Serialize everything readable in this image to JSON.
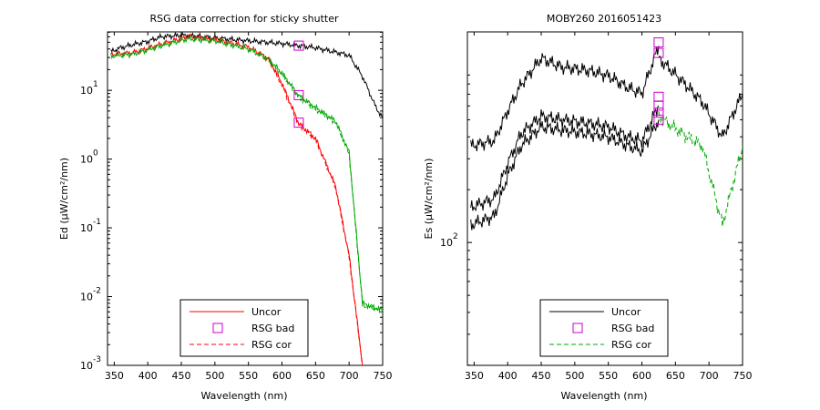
{
  "chart_data": [
    {
      "type": "line",
      "title": "RSG data correction for sticky shutter",
      "xlabel": "Wavelength (nm)",
      "ylabel": "Ed (µW/cm²/nm)",
      "xlim": [
        340,
        750
      ],
      "ylim_log10": [
        -3,
        1.85
      ],
      "yscale": "log",
      "xticks": [
        350,
        400,
        450,
        500,
        550,
        600,
        650,
        700,
        750
      ],
      "yticks": [
        {
          "value": 1,
          "base": "10",
          "exp": "1"
        },
        {
          "value": 0,
          "base": "10",
          "exp": "0"
        },
        {
          "value": -1,
          "base": "10",
          "exp": "-1"
        },
        {
          "value": -2,
          "base": "10",
          "exp": "-2"
        },
        {
          "value": -3,
          "base": "10",
          "exp": "-3"
        }
      ],
      "legend": {
        "location": "bottom-center",
        "entries": [
          "Uncor",
          "RSG bad",
          "RSG cor"
        ]
      },
      "series": [
        {
          "name": "Uncor",
          "color": "#000000",
          "style": "solid",
          "x": [
            345,
            360,
            380,
            400,
            420,
            450,
            470,
            500,
            550,
            600,
            650,
            700,
            720,
            740,
            750
          ],
          "y": [
            1.56,
            1.62,
            1.67,
            1.71,
            1.78,
            1.8,
            1.79,
            1.76,
            1.72,
            1.68,
            1.62,
            1.51,
            1.2,
            0.75,
            0.6
          ]
        },
        {
          "name": "Uncor",
          "color": "#ff0000",
          "style": "solid",
          "x": [
            345,
            380,
            420,
            460,
            500,
            550,
            580,
            600,
            625,
            650,
            680,
            700,
            720
          ],
          "y": [
            1.52,
            1.55,
            1.67,
            1.78,
            1.74,
            1.63,
            1.46,
            1.1,
            0.52,
            0.3,
            -0.4,
            -1.4,
            -3.0
          ]
        },
        {
          "name": "Uncor",
          "color": "#00aa00",
          "style": "solid",
          "x": [
            345,
            380,
            420,
            460,
            500,
            550,
            580,
            600,
            625,
            650,
            680,
            700,
            720,
            750
          ],
          "y": [
            1.5,
            1.53,
            1.65,
            1.75,
            1.72,
            1.6,
            1.45,
            1.25,
            0.92,
            0.75,
            0.55,
            0.1,
            -2.1,
            -2.2
          ]
        },
        {
          "name": "RSG cor",
          "color": "#ff0000",
          "style": "dashed",
          "x": [
            580,
            600,
            625,
            650,
            680,
            700,
            720
          ],
          "y": [
            1.45,
            1.08,
            0.5,
            0.28,
            -0.42,
            -1.42,
            -3.0
          ]
        },
        {
          "name": "RSG cor",
          "color": "#00aa00",
          "style": "dashed",
          "x": [
            580,
            600,
            625,
            650,
            680,
            700,
            720,
            750
          ],
          "y": [
            1.44,
            1.23,
            0.9,
            0.73,
            0.53,
            0.08,
            -2.12,
            -2.22
          ]
        },
        {
          "name": "RSG bad",
          "color": "#cc00cc",
          "style": "marker-square",
          "x": [
            625,
            625,
            625
          ],
          "y": [
            1.65,
            0.93,
            0.53
          ]
        }
      ]
    },
    {
      "type": "line",
      "title": "MOBY260  2016051423",
      "xlabel": "Wavelength (nm)",
      "ylabel": "Es (µW/cm²/nm)",
      "xlim": [
        340,
        750
      ],
      "yscale": "log",
      "xticks": [
        350,
        400,
        450,
        500,
        550,
        600,
        650,
        700,
        750
      ],
      "yticks": [
        {
          "value": 2,
          "base": "10",
          "exp": "2"
        }
      ],
      "legend": {
        "location": "bottom-center",
        "entries": [
          "Uncor",
          "RSG bad",
          "RSG cor"
        ]
      },
      "series": [
        {
          "name": "Uncor",
          "color": "#000000",
          "style": "solid",
          "x": [
            345,
            380,
            400,
            420,
            450,
            480,
            520,
            550,
            580,
            600,
            625
          ],
          "y": [
            2.55,
            2.58,
            2.75,
            2.9,
            3.05,
            3.0,
            2.98,
            2.95,
            2.88,
            2.85,
            3.12
          ]
        },
        {
          "name": "Uncor",
          "color": "#000000",
          "style": "solid",
          "x": [
            345,
            380,
            400,
            420,
            450,
            480,
            520,
            550,
            580,
            600,
            625
          ],
          "y": [
            2.2,
            2.25,
            2.45,
            2.62,
            2.72,
            2.7,
            2.68,
            2.66,
            2.6,
            2.58,
            2.78
          ]
        },
        {
          "name": "Uncor",
          "color": "#000000",
          "style": "solid",
          "x": [
            345,
            380,
            400,
            420,
            450,
            480,
            520,
            550,
            580,
            600,
            625
          ],
          "y": [
            2.1,
            2.15,
            2.38,
            2.55,
            2.66,
            2.64,
            2.62,
            2.6,
            2.55,
            2.52,
            2.7
          ]
        },
        {
          "name": "Uncor",
          "color": "#000000",
          "style": "solid",
          "x": [
            625,
            660,
            690,
            720,
            750
          ],
          "y": [
            3.05,
            2.92,
            2.8,
            2.6,
            2.85
          ]
        },
        {
          "name": "RSG cor",
          "color": "#00aa00",
          "style": "dashed",
          "x": [
            625,
            660,
            690,
            720,
            750
          ],
          "y": [
            2.72,
            2.62,
            2.55,
            2.1,
            2.55
          ]
        },
        {
          "name": "RSG bad",
          "color": "#cc00cc",
          "style": "marker-square",
          "x": [
            625,
            625,
            625,
            625,
            625,
            625
          ],
          "y": [
            3.14,
            3.08,
            2.83,
            2.78,
            2.74,
            2.7
          ]
        }
      ]
    }
  ]
}
